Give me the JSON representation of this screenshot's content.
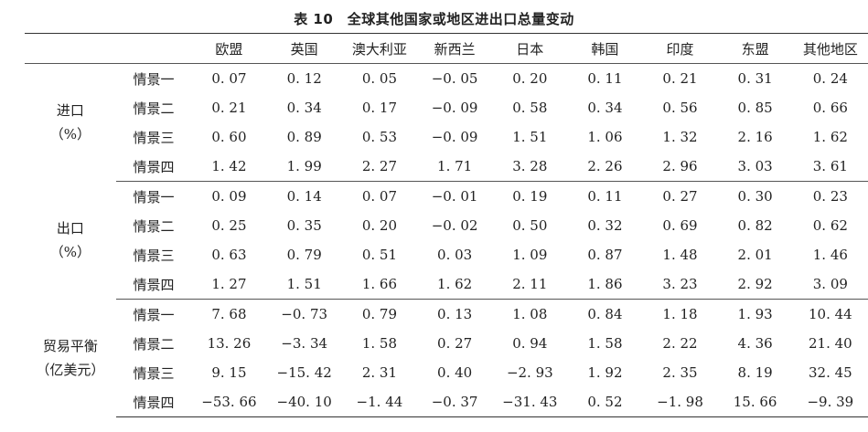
{
  "title": "表 10　全球其他国家或地区进出口总量变动",
  "columns": [
    "欧盟",
    "英国",
    "澳大利亚",
    "新西兰",
    "日本",
    "韩国",
    "印度",
    "东盟",
    "其他地区"
  ],
  "groups": [
    {
      "label_line1": "进口",
      "label_line2": "（%）",
      "rows": [
        {
          "scenario": "情景一",
          "values": [
            "0. 07",
            "0. 12",
            "0. 05",
            "−0. 05",
            "0. 20",
            "0. 11",
            "0. 21",
            "0. 31",
            "0. 24"
          ]
        },
        {
          "scenario": "情景二",
          "values": [
            "0. 21",
            "0. 34",
            "0. 17",
            "−0. 09",
            "0. 58",
            "0. 34",
            "0. 56",
            "0. 85",
            "0. 66"
          ]
        },
        {
          "scenario": "情景三",
          "values": [
            "0. 60",
            "0. 89",
            "0. 53",
            "−0. 09",
            "1. 51",
            "1. 06",
            "1. 32",
            "2. 16",
            "1. 62"
          ]
        },
        {
          "scenario": "情景四",
          "values": [
            "1. 42",
            "1. 99",
            "2. 27",
            "1. 71",
            "3. 28",
            "2. 26",
            "2. 96",
            "3. 03",
            "3. 61"
          ]
        }
      ]
    },
    {
      "label_line1": "出口",
      "label_line2": "（%）",
      "rows": [
        {
          "scenario": "情景一",
          "values": [
            "0. 09",
            "0. 14",
            "0. 07",
            "−0. 01",
            "0. 19",
            "0. 11",
            "0. 27",
            "0. 30",
            "0. 23"
          ]
        },
        {
          "scenario": "情景二",
          "values": [
            "0. 25",
            "0. 35",
            "0. 20",
            "−0. 02",
            "0. 50",
            "0. 32",
            "0. 69",
            "0. 82",
            "0. 62"
          ]
        },
        {
          "scenario": "情景三",
          "values": [
            "0. 63",
            "0. 79",
            "0. 51",
            "0. 03",
            "1. 09",
            "0. 87",
            "1. 48",
            "2. 01",
            "1. 46"
          ]
        },
        {
          "scenario": "情景四",
          "values": [
            "1. 27",
            "1. 51",
            "1. 66",
            "1. 62",
            "2. 11",
            "1. 86",
            "3. 23",
            "2. 92",
            "3. 09"
          ]
        }
      ]
    },
    {
      "label_line1": "贸易平衡",
      "label_line2": "（亿美元）",
      "rows": [
        {
          "scenario": "情景一",
          "values": [
            "7. 68",
            "−0. 73",
            "0. 79",
            "0. 13",
            "1. 08",
            "0. 84",
            "1. 18",
            "1. 93",
            "10. 44"
          ]
        },
        {
          "scenario": "情景二",
          "values": [
            "13. 26",
            "−3. 34",
            "1. 58",
            "0. 27",
            "0. 94",
            "1. 58",
            "2. 22",
            "4. 36",
            "21. 40"
          ]
        },
        {
          "scenario": "情景三",
          "values": [
            "9. 15",
            "−15. 42",
            "2. 31",
            "0. 40",
            "−2. 93",
            "1. 92",
            "2. 35",
            "8. 19",
            "32. 45"
          ]
        },
        {
          "scenario": "情景四",
          "values": [
            "−53. 66",
            "−40. 10",
            "−1. 44",
            "−0. 37",
            "−31. 43",
            "0. 52",
            "−1. 98",
            "15. 66",
            "−9. 39"
          ]
        }
      ]
    }
  ]
}
